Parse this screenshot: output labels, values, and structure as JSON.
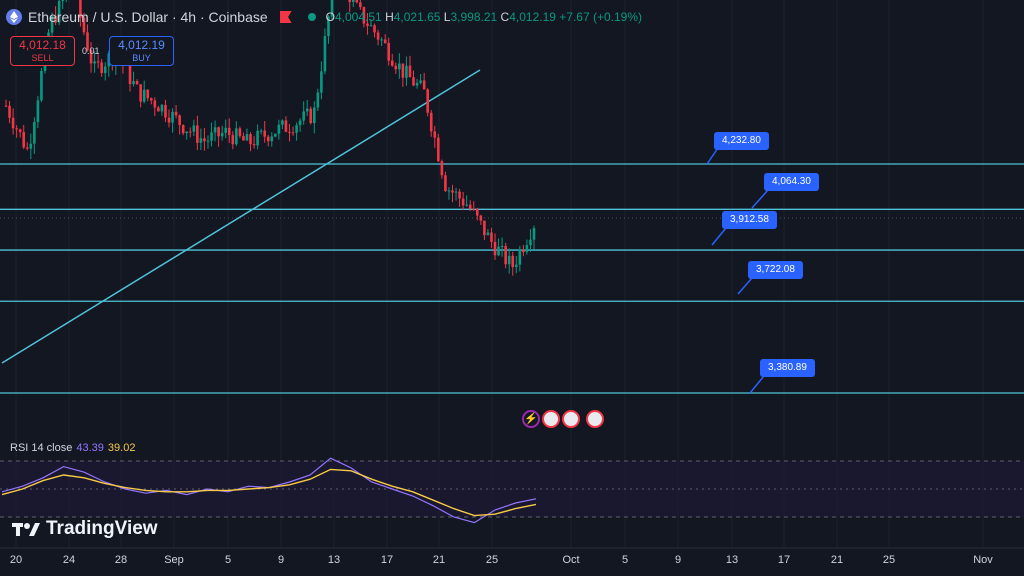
{
  "header": {
    "title": "Ethereum / U.S. Dollar · 4h · Coinbase",
    "o_label": "O",
    "o_value": "4,004.51",
    "h_label": "H",
    "h_value": "4,021.65",
    "l_label": "L",
    "l_value": "3,998.21",
    "c_label": "C",
    "c_value": "4,012.19",
    "change": "+7.67 (+0.19%)"
  },
  "trade": {
    "sell_price": "4,012.18",
    "sell_label": "SELL",
    "spread": "0.01",
    "buy_price": "4,012.19",
    "buy_label": "BUY"
  },
  "levels": [
    "4,232.80",
    "4,064.30",
    "3,912.58",
    "3,722.08",
    "3,380.89"
  ],
  "rsi": {
    "label": "RSI 14 close",
    "value": "43.39",
    "ma_value": "39.02"
  },
  "brand": {
    "name": "TradingView"
  },
  "colors": {
    "background": "#131722",
    "up": "#089981",
    "down": "#f23645",
    "level_line": "#4fc3d9",
    "rsi": "#9575ff",
    "rsi_ma": "#f7c948",
    "label_bg": "#2962ff"
  },
  "chart_data": {
    "type": "candlestick",
    "symbol": "Ethereum / U.S. Dollar",
    "timeframe": "4h",
    "exchange": "Coinbase",
    "x_ticks": [
      "20",
      "24",
      "28",
      "Sep",
      "5",
      "9",
      "13",
      "17",
      "21",
      "25",
      "Oct",
      "5",
      "9",
      "13",
      "17",
      "21",
      "25",
      "Nov"
    ],
    "close_path": [
      4450,
      4280,
      4750,
      4900,
      4580,
      4650,
      4500,
      4450,
      4380,
      4320,
      4350,
      4310,
      4350,
      4380,
      4420,
      4960,
      4800,
      4700,
      4580,
      4500,
      4150,
      4080,
      3950,
      3850,
      4012
    ],
    "horizontal_levels": [
      4232.8,
      4064.3,
      3912.58,
      3722.08,
      3380.89
    ],
    "trendline": {
      "from": [
        "20",
        3450
      ],
      "to": [
        "21",
        4920
      ]
    },
    "rsi_series": [
      48,
      52,
      58,
      66,
      62,
      55,
      50,
      47,
      49,
      46,
      50,
      48,
      52,
      51,
      55,
      60,
      72,
      65,
      55,
      50,
      45,
      38,
      30,
      26,
      35,
      40,
      43
    ],
    "rsi_ma_series": [
      46,
      50,
      56,
      60,
      58,
      54,
      51,
      49,
      48,
      48,
      49,
      49,
      50,
      51,
      53,
      57,
      64,
      63,
      57,
      52,
      48,
      42,
      36,
      31,
      32,
      36,
      39
    ]
  }
}
